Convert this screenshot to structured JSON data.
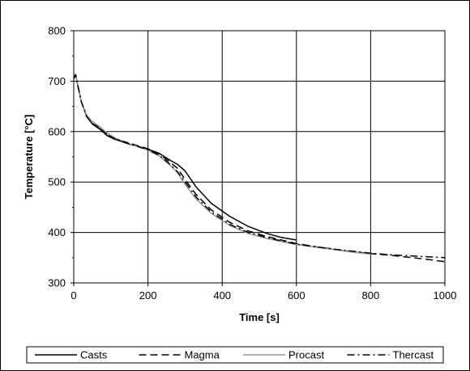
{
  "chart_data": {
    "type": "line",
    "xlabel": "Time [s]",
    "ylabel": "Temperature [°C]",
    "xlim": [
      0,
      1000
    ],
    "ylim": [
      300,
      800
    ],
    "xticks": [
      0,
      200,
      400,
      600,
      800,
      1000
    ],
    "yticks": [
      300,
      400,
      500,
      600,
      700,
      800
    ],
    "grid": true,
    "legend_position": "bottom",
    "series": [
      {
        "name": "Casts",
        "color": "#000000",
        "dash": "solid",
        "x": [
          0,
          5,
          10,
          20,
          35,
          50,
          70,
          90,
          110,
          150,
          200,
          230,
          260,
          280,
          300,
          330,
          370,
          420,
          470,
          520,
          560,
          600
        ],
        "y": [
          705,
          713,
          695,
          660,
          630,
          615,
          605,
          592,
          585,
          575,
          565,
          557,
          543,
          535,
          522,
          490,
          458,
          432,
          412,
          398,
          390,
          385
        ]
      },
      {
        "name": "Magma",
        "color": "#000000",
        "dash": "dashed",
        "x": [
          0,
          5,
          10,
          20,
          35,
          50,
          70,
          90,
          110,
          150,
          200,
          230,
          260,
          280,
          300,
          330,
          370,
          420,
          470,
          520,
          560,
          600,
          650,
          700,
          750,
          800,
          850,
          900,
          950,
          1000
        ],
        "y": [
          705,
          713,
          695,
          660,
          630,
          616,
          608,
          595,
          587,
          577,
          566,
          556,
          539,
          527,
          505,
          475,
          445,
          420,
          403,
          392,
          385,
          378,
          372,
          367,
          362,
          358,
          355,
          351,
          347,
          342
        ]
      },
      {
        "name": "Procast",
        "color": "#9a9a9a",
        "dash": "solid",
        "x": [
          0,
          5,
          10,
          20,
          35,
          50,
          70,
          90,
          110,
          150,
          200,
          230,
          260,
          280,
          300,
          330,
          370,
          420,
          470,
          520,
          560,
          600,
          650,
          700,
          750,
          800
        ],
        "y": [
          705,
          713,
          695,
          660,
          632,
          620,
          610,
          597,
          588,
          576,
          563,
          552,
          533,
          518,
          495,
          466,
          438,
          414,
          398,
          388,
          382,
          376,
          371,
          366,
          361,
          357
        ]
      },
      {
        "name": "Thercast",
        "color": "#000000",
        "dash": "dashdot",
        "x": [
          0,
          5,
          10,
          20,
          35,
          50,
          70,
          90,
          110,
          150,
          200,
          230,
          260,
          280,
          300,
          330,
          370,
          420,
          470,
          520,
          560,
          600,
          650,
          700,
          750,
          800,
          850,
          900,
          950,
          1000
        ],
        "y": [
          705,
          713,
          695,
          660,
          630,
          616,
          606,
          594,
          586,
          576,
          564,
          553,
          535,
          520,
          500,
          470,
          441,
          416,
          400,
          390,
          383,
          377,
          372,
          367,
          363,
          359,
          356,
          354,
          352,
          350
        ]
      }
    ]
  }
}
